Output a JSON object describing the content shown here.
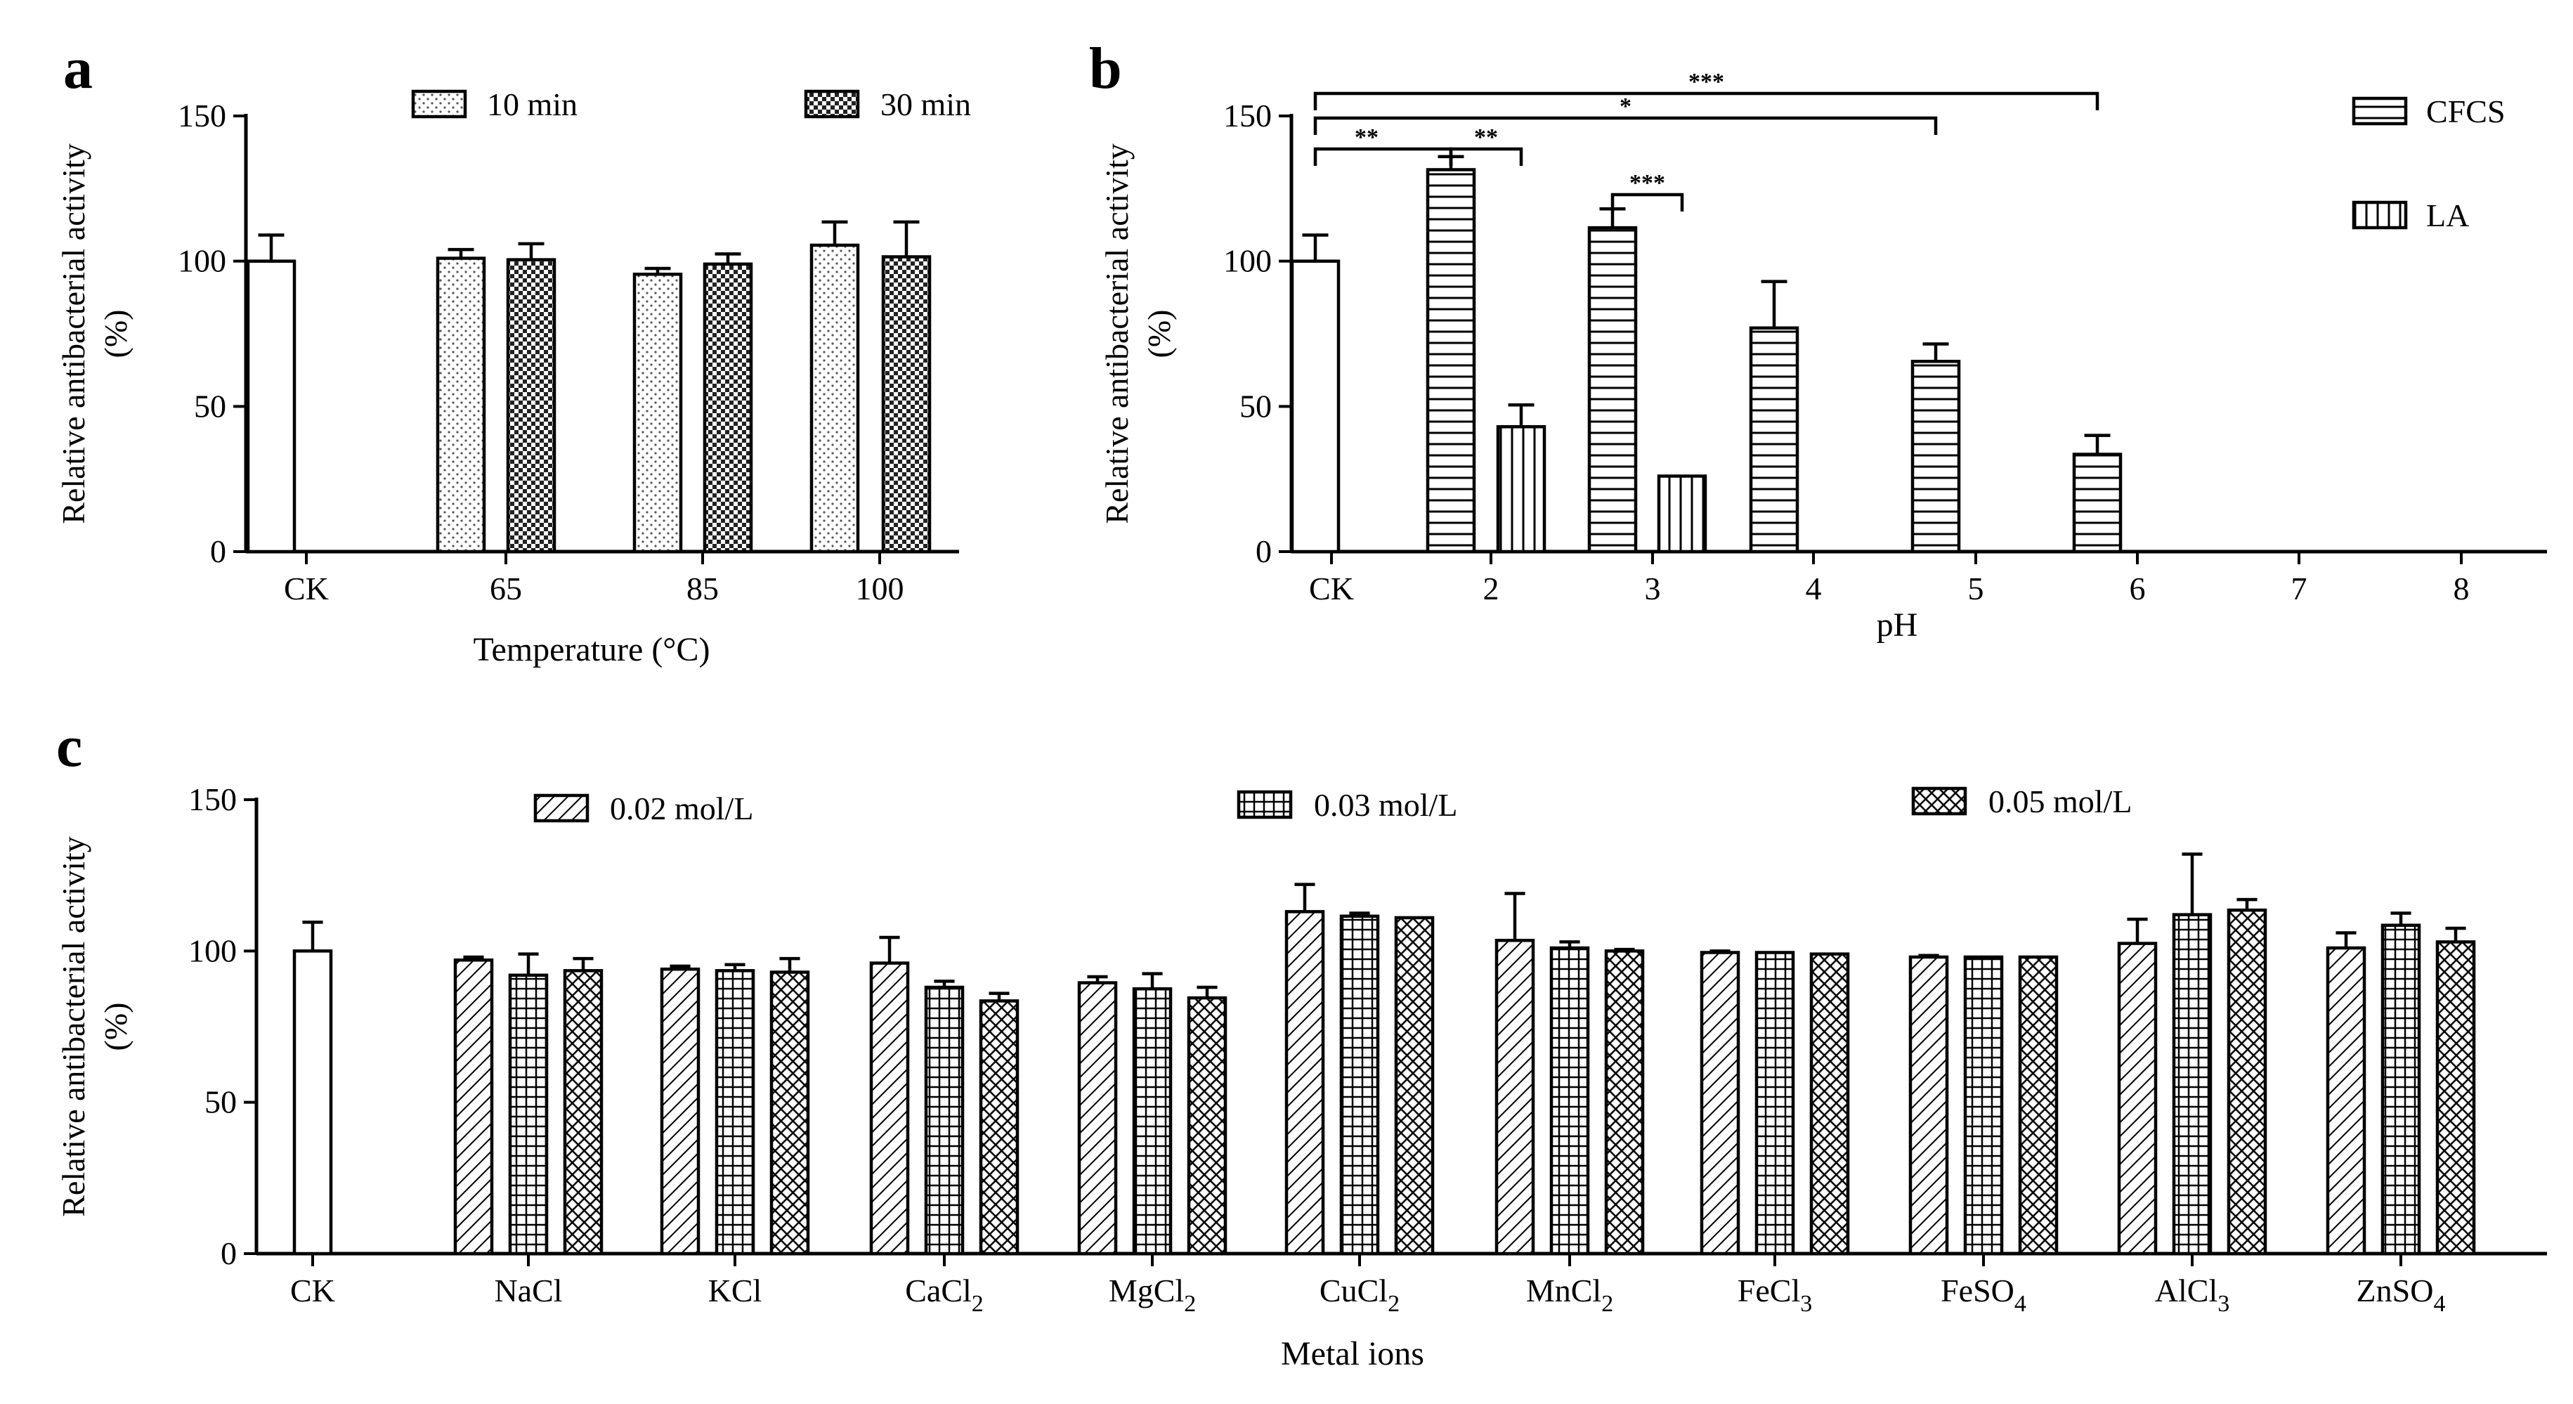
{
  "chart_data": [
    {
      "panel": "a",
      "type": "bar",
      "ylabel": [
        "Relative antibacterial activity",
        "(%)"
      ],
      "xlabel": "Temperature (°C)",
      "ylim": [
        0,
        150
      ],
      "yticks": [
        0,
        50,
        100,
        150
      ],
      "categories": [
        "CK",
        "65",
        "85",
        "100"
      ],
      "series": [
        {
          "name": "CK",
          "pattern": "white",
          "values": [
            100,
            null,
            null,
            null
          ],
          "errors": [
            9,
            null,
            null,
            null
          ]
        },
        {
          "name": "10 min",
          "pattern": "dots",
          "values": [
            null,
            101,
            95.5,
            105.5
          ],
          "errors": [
            null,
            3,
            2,
            8
          ]
        },
        {
          "name": "30 min",
          "pattern": "checker",
          "values": [
            null,
            100.5,
            99,
            101.5
          ],
          "errors": [
            null,
            5.5,
            3.5,
            12
          ]
        }
      ],
      "legend": [
        {
          "label": "10 min",
          "pattern": "dots"
        },
        {
          "label": "30 min",
          "pattern": "checker"
        }
      ]
    },
    {
      "panel": "b",
      "type": "bar",
      "ylabel": [
        "Relative antibacterial activity",
        "(%)"
      ],
      "xlabel": "pH",
      "ylim": [
        0,
        150
      ],
      "yticks": [
        0,
        50,
        100,
        150
      ],
      "categories": [
        "CK",
        "2",
        "3",
        "4",
        "5",
        "6",
        "7",
        "8"
      ],
      "series": [
        {
          "name": "CK",
          "pattern": "white",
          "values": [
            100,
            null,
            null,
            null,
            null,
            null,
            null,
            null
          ],
          "errors": [
            9,
            null,
            null,
            null,
            null,
            null,
            null,
            null
          ]
        },
        {
          "name": "CFCS",
          "pattern": "hlines",
          "values": [
            null,
            131.5,
            111.5,
            77,
            65.5,
            33.5,
            null,
            null
          ],
          "errors": [
            null,
            4.5,
            6.5,
            16,
            6,
            6.5,
            null,
            null
          ]
        },
        {
          "name": "LA",
          "pattern": "vlines",
          "values": [
            null,
            43,
            26,
            null,
            null,
            null,
            null,
            null
          ],
          "errors": [
            null,
            7.5,
            0,
            null,
            null,
            null,
            null,
            null
          ]
        }
      ],
      "legend": [
        {
          "label": "CFCS",
          "pattern": "hlines"
        },
        {
          "label": "LA",
          "pattern": "vlines"
        }
      ],
      "significance": [
        {
          "label": "***",
          "from": "CK",
          "to": "6 CFCS"
        },
        {
          "label": "*",
          "from": "CK",
          "to": "5 CFCS"
        },
        {
          "label": "**",
          "from": "CK",
          "to": "2 CFCS"
        },
        {
          "label": "**",
          "from": "2 CFCS",
          "to": "2 LA"
        },
        {
          "label": "***",
          "from": "3 CFCS",
          "to": "3 LA"
        }
      ]
    },
    {
      "panel": "c",
      "type": "bar",
      "ylabel": [
        "Relative antibacterial activity",
        "(%)"
      ],
      "xlabel": "Metal ions",
      "ylim": [
        0,
        150
      ],
      "yticks": [
        0,
        50,
        100,
        150
      ],
      "categories": [
        "CK",
        "NaCl",
        "KCl",
        "CaCl2",
        "MgCl2",
        "CuCl2",
        "MnCl2",
        "FeCl3",
        "FeSO4",
        "AlCl3",
        "ZnSO4"
      ],
      "series": [
        {
          "name": "CK",
          "pattern": "white",
          "values": [
            100,
            null,
            null,
            null,
            null,
            null,
            null,
            null,
            null,
            null,
            null
          ],
          "errors": [
            9.5,
            null,
            null,
            null,
            null,
            null,
            null,
            null,
            null,
            null,
            null
          ]
        },
        {
          "name": "0.02 mol/L",
          "pattern": "diag",
          "values": [
            null,
            97,
            94,
            96,
            89.5,
            113,
            103.5,
            99.5,
            98,
            102.5,
            101
          ],
          "errors": [
            null,
            1,
            1,
            8.5,
            2,
            9,
            15.5,
            0.5,
            0.5,
            8,
            5
          ]
        },
        {
          "name": "0.03 mol/L",
          "pattern": "grid",
          "values": [
            null,
            92,
            93.5,
            88,
            87.5,
            111.5,
            101,
            99.5,
            98,
            112,
            108.5
          ],
          "errors": [
            null,
            7,
            2,
            2,
            5,
            1,
            2,
            0,
            0,
            20,
            4
          ]
        },
        {
          "name": "0.05 mol/L",
          "pattern": "crosshatch",
          "values": [
            null,
            93.5,
            93,
            83.5,
            84.5,
            111,
            100,
            99,
            98,
            113.5,
            103
          ],
          "errors": [
            null,
            4,
            4.5,
            2.5,
            3.5,
            0,
            0.5,
            0,
            0,
            3.5,
            4.5
          ]
        }
      ],
      "legend": [
        {
          "label": "0.02 mol/L",
          "pattern": "diag"
        },
        {
          "label": "0.03 mol/L",
          "pattern": "grid"
        },
        {
          "label": "0.05 mol/L",
          "pattern": "crosshatch"
        }
      ]
    }
  ],
  "text": {
    "metal_labels": [
      {
        "base": "CK",
        "sub": ""
      },
      {
        "base": "NaCl",
        "sub": ""
      },
      {
        "base": "KCl",
        "sub": ""
      },
      {
        "base": "CaCl",
        "sub": "2"
      },
      {
        "base": "MgCl",
        "sub": "2"
      },
      {
        "base": "CuCl",
        "sub": "2"
      },
      {
        "base": "MnCl",
        "sub": "2"
      },
      {
        "base": "FeCl",
        "sub": "3"
      },
      {
        "base": "FeSO",
        "sub": "4"
      },
      {
        "base": "AlCl",
        "sub": "3"
      },
      {
        "base": "ZnSO",
        "sub": "4"
      }
    ]
  }
}
